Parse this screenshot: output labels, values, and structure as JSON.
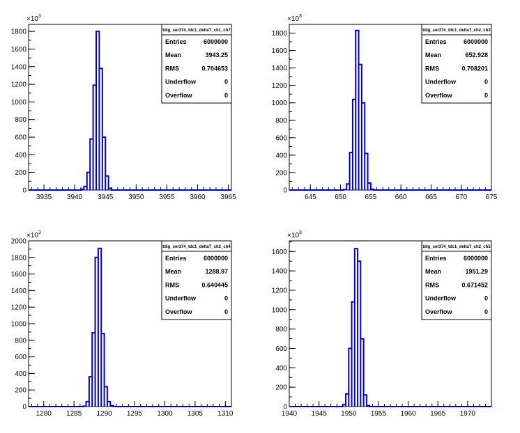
{
  "chart_data": [
    {
      "type": "histogram",
      "histogram_name": "tdig_ser374_tdc1_deltaT_ch1_ch7",
      "y_exponent_label": "×10",
      "y_exponent": "3",
      "xlim": [
        3932.5,
        3965.5
      ],
      "ylim": [
        0,
        1880
      ],
      "x_ticks": [
        3935,
        3940,
        3945,
        3950,
        3955,
        3960,
        3965
      ],
      "y_ticks": [
        0,
        200,
        400,
        600,
        800,
        1000,
        1200,
        1400,
        1600,
        1800
      ],
      "bins": [
        [
          3941.0,
          3941.5,
          10
        ],
        [
          3941.5,
          3942.0,
          40
        ],
        [
          3942.0,
          3942.5,
          200
        ],
        [
          3942.5,
          3943.0,
          580
        ],
        [
          3943.0,
          3943.5,
          1190
        ],
        [
          3943.5,
          3944.0,
          1800
        ],
        [
          3944.0,
          3944.5,
          1380
        ],
        [
          3944.5,
          3945.0,
          600
        ],
        [
          3945.0,
          3945.5,
          160
        ],
        [
          3945.5,
          3946.0,
          20
        ]
      ],
      "stats": [
        {
          "label": "Entries",
          "value": "6000000"
        },
        {
          "label": "Mean",
          "value": "3943.25"
        },
        {
          "label": "RMS",
          "value": "0.704653"
        },
        {
          "label": "Underflow",
          "value": "0"
        },
        {
          "label": "Overflow",
          "value": "0"
        }
      ]
    },
    {
      "type": "histogram",
      "histogram_name": "tdig_ser374_tdc1_deltaT_ch2_ch3",
      "y_exponent_label": "×10",
      "y_exponent": "3",
      "xlim": [
        641.5,
        675
      ],
      "ylim": [
        0,
        1900
      ],
      "x_ticks": [
        645,
        650,
        655,
        660,
        665,
        670,
        675
      ],
      "y_ticks": [
        0,
        200,
        400,
        600,
        800,
        1000,
        1200,
        1400,
        1600,
        1800
      ],
      "bins": [
        [
          650.5,
          651.0,
          5
        ],
        [
          651.0,
          651.5,
          70
        ],
        [
          651.5,
          652.0,
          430
        ],
        [
          652.0,
          652.5,
          1040
        ],
        [
          652.5,
          653.0,
          1830
        ],
        [
          653.0,
          653.5,
          1440
        ],
        [
          653.5,
          654.0,
          1000
        ],
        [
          654.0,
          654.5,
          420
        ],
        [
          654.5,
          655.0,
          80
        ],
        [
          655.0,
          655.5,
          10
        ]
      ],
      "stats": [
        {
          "label": "Entries",
          "value": "6000000"
        },
        {
          "label": "Mean",
          "value": "652.928"
        },
        {
          "label": "RMS",
          "value": "0.708201"
        },
        {
          "label": "Underflow",
          "value": "0"
        },
        {
          "label": "Overflow",
          "value": "0"
        }
      ]
    },
    {
      "type": "histogram",
      "histogram_name": "tdig_ser374_tdc1_deltaT_ch2_ch4",
      "y_exponent_label": "×10",
      "y_exponent": "3",
      "xlim": [
        1277.5,
        1311
      ],
      "ylim": [
        0,
        2000
      ],
      "x_ticks": [
        1280,
        1285,
        1290,
        1295,
        1300,
        1305,
        1310
      ],
      "y_ticks": [
        0,
        200,
        400,
        600,
        800,
        1000,
        1200,
        1400,
        1600,
        1800,
        2000
      ],
      "bins": [
        [
          1286.5,
          1287.0,
          5
        ],
        [
          1287.0,
          1287.5,
          60
        ],
        [
          1287.5,
          1288.0,
          360
        ],
        [
          1288.0,
          1288.5,
          890
        ],
        [
          1288.5,
          1289.0,
          1800
        ],
        [
          1289.0,
          1289.5,
          1910
        ],
        [
          1289.5,
          1290.0,
          880
        ],
        [
          1290.0,
          1290.5,
          240
        ],
        [
          1290.5,
          1291.0,
          60
        ],
        [
          1291.0,
          1291.5,
          10
        ]
      ],
      "stats": [
        {
          "label": "Entries",
          "value": "6000000"
        },
        {
          "label": "Mean",
          "value": "1288.97"
        },
        {
          "label": "RMS",
          "value": "0.640445"
        },
        {
          "label": "Underflow",
          "value": "0"
        },
        {
          "label": "Overflow",
          "value": "0"
        }
      ]
    },
    {
      "type": "histogram",
      "histogram_name": "tdig_ser374_tdc1_deltaT_ch2_ch5",
      "y_exponent_label": "×10",
      "y_exponent": "3",
      "xlim": [
        1940,
        1974
      ],
      "ylim": [
        0,
        1710
      ],
      "x_ticks": [
        1940,
        1945,
        1950,
        1955,
        1960,
        1965,
        1970
      ],
      "y_ticks": [
        0,
        200,
        400,
        600,
        800,
        1000,
        1200,
        1400,
        1600
      ],
      "bins": [
        [
          1949.0,
          1949.5,
          20
        ],
        [
          1949.5,
          1950.0,
          130
        ],
        [
          1950.0,
          1950.5,
          600
        ],
        [
          1950.5,
          1951.0,
          1080
        ],
        [
          1951.0,
          1951.5,
          1630
        ],
        [
          1951.5,
          1952.0,
          1500
        ],
        [
          1952.0,
          1952.5,
          700
        ],
        [
          1952.5,
          1953.0,
          120
        ],
        [
          1953.0,
          1953.5,
          10
        ]
      ],
      "stats": [
        {
          "label": "Entries",
          "value": "6000000"
        },
        {
          "label": "Mean",
          "value": "1951.29"
        },
        {
          "label": "RMS",
          "value": "0.671452"
        },
        {
          "label": "Underflow",
          "value": "0"
        },
        {
          "label": "Overflow",
          "value": "0"
        }
      ]
    }
  ],
  "colors": {
    "line": "#0000cc",
    "frame": "#000000",
    "background": "#ffffff"
  }
}
